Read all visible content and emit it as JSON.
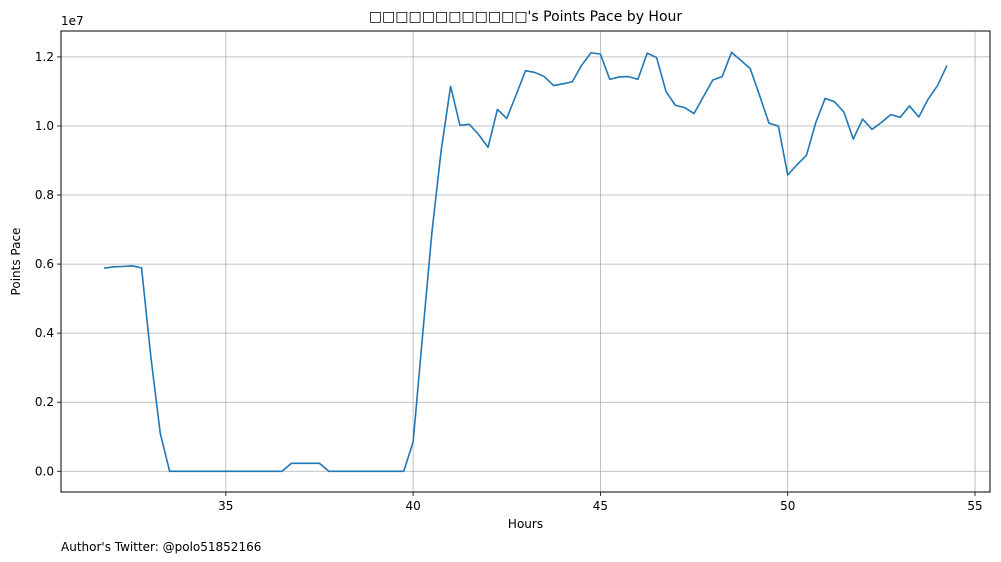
{
  "chart_data": {
    "type": "line",
    "title": "□□□□□□□□□□□□'s Points Pace by Hour",
    "xlabel": "Hours",
    "ylabel": "Points Pace",
    "y_multiplier": "1e7",
    "xlim": [
      30.6,
      55.4
    ],
    "ylim": [
      -0.06,
      1.275
    ],
    "x_ticks": [
      35,
      40,
      45,
      50,
      55
    ],
    "x_tick_labels": [
      "35",
      "40",
      "45",
      "50",
      "55"
    ],
    "y_ticks": [
      0.0,
      0.2,
      0.4,
      0.6,
      0.8,
      1.0,
      1.2
    ],
    "y_tick_labels": [
      "0.0",
      "0.2",
      "0.4",
      "0.6",
      "0.8",
      "1.0",
      "1.2"
    ],
    "grid": true,
    "line_color": "#1f77b4",
    "series": [
      {
        "x": [
          31.75,
          32.0,
          32.25,
          32.5,
          32.75,
          33.0,
          33.25,
          33.5,
          33.75,
          34.0,
          34.25,
          34.5,
          34.75,
          35.0,
          35.25,
          35.5,
          35.75,
          36.0,
          36.25,
          36.5,
          36.75,
          37.0,
          37.25,
          37.5,
          37.75,
          38.0,
          38.25,
          38.5,
          38.75,
          39.0,
          39.25,
          39.5,
          39.75,
          40.0,
          40.25,
          40.5,
          40.75,
          41.0,
          41.25,
          41.5,
          41.75,
          42.0,
          42.25,
          42.5,
          42.75,
          43.0,
          43.25,
          43.5,
          43.75,
          44.0,
          44.25,
          44.5,
          44.75,
          45.0,
          45.25,
          45.5,
          45.75,
          46.0,
          46.25,
          46.5,
          46.75,
          47.0,
          47.25,
          47.5,
          47.75,
          48.0,
          48.25,
          48.5,
          48.75,
          49.0,
          49.25,
          49.5,
          49.75,
          50.0,
          50.25,
          50.5,
          50.75,
          51.0,
          51.25,
          51.5,
          51.75,
          52.0,
          52.25,
          52.5,
          52.75,
          53.0,
          53.25,
          53.5,
          53.75,
          54.0,
          54.25
        ],
        "y": [
          0.588,
          0.592,
          0.593,
          0.595,
          0.589,
          0.33,
          0.11,
          0.0,
          0.0,
          0.0,
          0.0,
          0.0,
          0.0,
          0.0,
          0.0,
          0.0,
          0.0,
          0.0,
          0.0,
          0.0,
          0.023,
          0.023,
          0.023,
          0.023,
          0.0,
          0.0,
          0.0,
          0.0,
          0.0,
          0.0,
          0.0,
          0.0,
          0.0,
          0.085,
          0.39,
          0.69,
          0.93,
          1.115,
          1.002,
          1.005,
          0.975,
          0.938,
          1.048,
          1.022,
          1.09,
          1.16,
          1.155,
          1.143,
          1.117,
          1.122,
          1.128,
          1.176,
          1.212,
          1.208,
          1.135,
          1.142,
          1.143,
          1.135,
          1.211,
          1.198,
          1.1,
          1.06,
          1.053,
          1.036,
          1.085,
          1.133,
          1.143,
          1.213,
          1.19,
          1.166,
          1.088,
          1.008,
          1.0,
          0.858,
          0.888,
          0.915,
          1.01,
          1.08,
          1.07,
          1.04,
          0.962,
          1.02,
          0.99,
          1.01,
          1.033,
          1.025,
          1.058,
          1.026,
          1.078,
          1.117,
          1.175
        ]
      }
    ]
  },
  "footer": {
    "author": "Author's Twitter: @polo51852166"
  }
}
